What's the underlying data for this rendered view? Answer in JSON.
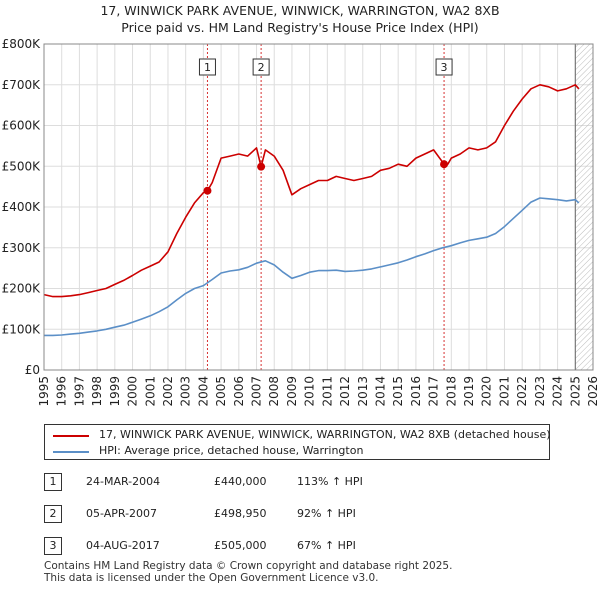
{
  "title_line1": "17, WINWICK PARK AVENUE, WINWICK, WARRINGTON, WA2 8XB",
  "title_line2": "Price paid vs. HM Land Registry's House Price Index (HPI)",
  "colors": {
    "property": "#cc0000",
    "hpi": "#5b8fc7",
    "grid": "#dddddd",
    "marker_line": "#cc0000"
  },
  "legend": {
    "property_label": "17, WINWICK PARK AVENUE, WINWICK, WARRINGTON, WA2 8XB (detached house)",
    "hpi_label": "HPI: Average price, detached house, Warrington"
  },
  "sales": [
    {
      "num": "1",
      "date": "24-MAR-2004",
      "price": "£440,000",
      "hpi": "113% ↑ HPI"
    },
    {
      "num": "2",
      "date": "05-APR-2007",
      "price": "£498,950",
      "hpi": "92% ↑ HPI"
    },
    {
      "num": "3",
      "date": "04-AUG-2017",
      "price": "£505,000",
      "hpi": "67% ↑ HPI"
    }
  ],
  "footer_line1": "Contains HM Land Registry data © Crown copyright and database right 2025.",
  "footer_line2": "This data is licensed under the Open Government Licence v3.0.",
  "chart_data": {
    "type": "line",
    "title": "17, WINWICK PARK AVENUE, WINWICK, WARRINGTON, WA2 8XB — Price paid vs. HM Land Registry's House Price Index (HPI)",
    "xlabel": "",
    "ylabel": "",
    "xlim": [
      1995,
      2026
    ],
    "ylim": [
      0,
      800000
    ],
    "x_ticks": [
      1995,
      1996,
      1997,
      1998,
      1999,
      2000,
      2001,
      2002,
      2003,
      2004,
      2005,
      2006,
      2007,
      2008,
      2009,
      2010,
      2011,
      2012,
      2013,
      2014,
      2015,
      2016,
      2017,
      2018,
      2019,
      2020,
      2021,
      2022,
      2023,
      2024,
      2025,
      2026
    ],
    "y_ticks": [
      0,
      100000,
      200000,
      300000,
      400000,
      500000,
      600000,
      700000,
      800000
    ],
    "y_tick_labels": [
      "£0",
      "£100K",
      "£200K",
      "£300K",
      "£400K",
      "£500K",
      "£600K",
      "£700K",
      "£800K"
    ],
    "grid": true,
    "hatch_from": 2025.0,
    "series": [
      {
        "name": "17, WINWICK PARK AVENUE, WINWICK, WARRINGTON, WA2 8XB (detached house)",
        "x": [
          1995.0,
          1995.5,
          1996.0,
          1996.5,
          1997.0,
          1997.5,
          1998.0,
          1998.5,
          1999.0,
          1999.5,
          2000.0,
          2000.5,
          2001.0,
          2001.5,
          2002.0,
          2002.5,
          2003.0,
          2003.5,
          2004.0,
          2004.23,
          2004.5,
          2005.0,
          2005.5,
          2006.0,
          2006.5,
          2007.0,
          2007.26,
          2007.5,
          2008.0,
          2008.5,
          2009.0,
          2009.5,
          2010.0,
          2010.5,
          2011.0,
          2011.5,
          2012.0,
          2012.5,
          2013.0,
          2013.5,
          2014.0,
          2014.5,
          2015.0,
          2015.5,
          2016.0,
          2016.5,
          2017.0,
          2017.59,
          2017.8,
          2018.0,
          2018.5,
          2019.0,
          2019.5,
          2020.0,
          2020.5,
          2021.0,
          2021.5,
          2022.0,
          2022.5,
          2023.0,
          2023.5,
          2024.0,
          2024.5,
          2025.0,
          2025.2
        ],
        "y": [
          185000,
          180000,
          180000,
          182000,
          185000,
          190000,
          195000,
          200000,
          210000,
          220000,
          232000,
          245000,
          255000,
          265000,
          290000,
          335000,
          375000,
          410000,
          435000,
          440000,
          460000,
          520000,
          525000,
          530000,
          525000,
          545000,
          498950,
          540000,
          525000,
          490000,
          430000,
          445000,
          455000,
          465000,
          465000,
          475000,
          470000,
          465000,
          470000,
          475000,
          490000,
          495000,
          505000,
          500000,
          520000,
          530000,
          540000,
          505000,
          505000,
          520000,
          530000,
          545000,
          540000,
          545000,
          560000,
          600000,
          635000,
          665000,
          690000,
          700000,
          695000,
          685000,
          690000,
          700000,
          690000
        ]
      },
      {
        "name": "HPI: Average price, detached house, Warrington",
        "x": [
          1995.0,
          1995.5,
          1996.0,
          1996.5,
          1997.0,
          1997.5,
          1998.0,
          1998.5,
          1999.0,
          1999.5,
          2000.0,
          2000.5,
          2001.0,
          2001.5,
          2002.0,
          2002.5,
          2003.0,
          2003.5,
          2004.0,
          2004.5,
          2005.0,
          2005.5,
          2006.0,
          2006.5,
          2007.0,
          2007.5,
          2008.0,
          2008.5,
          2009.0,
          2009.5,
          2010.0,
          2010.5,
          2011.0,
          2011.5,
          2012.0,
          2012.5,
          2013.0,
          2013.5,
          2014.0,
          2014.5,
          2015.0,
          2015.5,
          2016.0,
          2016.5,
          2017.0,
          2017.5,
          2018.0,
          2018.5,
          2019.0,
          2019.5,
          2020.0,
          2020.5,
          2021.0,
          2021.5,
          2022.0,
          2022.5,
          2023.0,
          2023.5,
          2024.0,
          2024.5,
          2025.0,
          2025.2
        ],
        "y": [
          85000,
          85000,
          86000,
          88000,
          90000,
          93000,
          96000,
          100000,
          105000,
          110000,
          117000,
          125000,
          133000,
          143000,
          155000,
          172000,
          188000,
          200000,
          207000,
          222000,
          238000,
          243000,
          246000,
          252000,
          262000,
          268000,
          258000,
          240000,
          225000,
          232000,
          240000,
          244000,
          244000,
          245000,
          242000,
          243000,
          245000,
          248000,
          253000,
          258000,
          263000,
          270000,
          278000,
          285000,
          293000,
          300000,
          305000,
          312000,
          318000,
          322000,
          326000,
          335000,
          352000,
          372000,
          392000,
          412000,
          422000,
          420000,
          418000,
          415000,
          418000,
          410000
        ]
      }
    ],
    "sale_markers": [
      {
        "num": "1",
        "x": 2004.23,
        "y": 440000
      },
      {
        "num": "2",
        "x": 2007.26,
        "y": 498950
      },
      {
        "num": "3",
        "x": 2017.59,
        "y": 505000
      }
    ]
  }
}
